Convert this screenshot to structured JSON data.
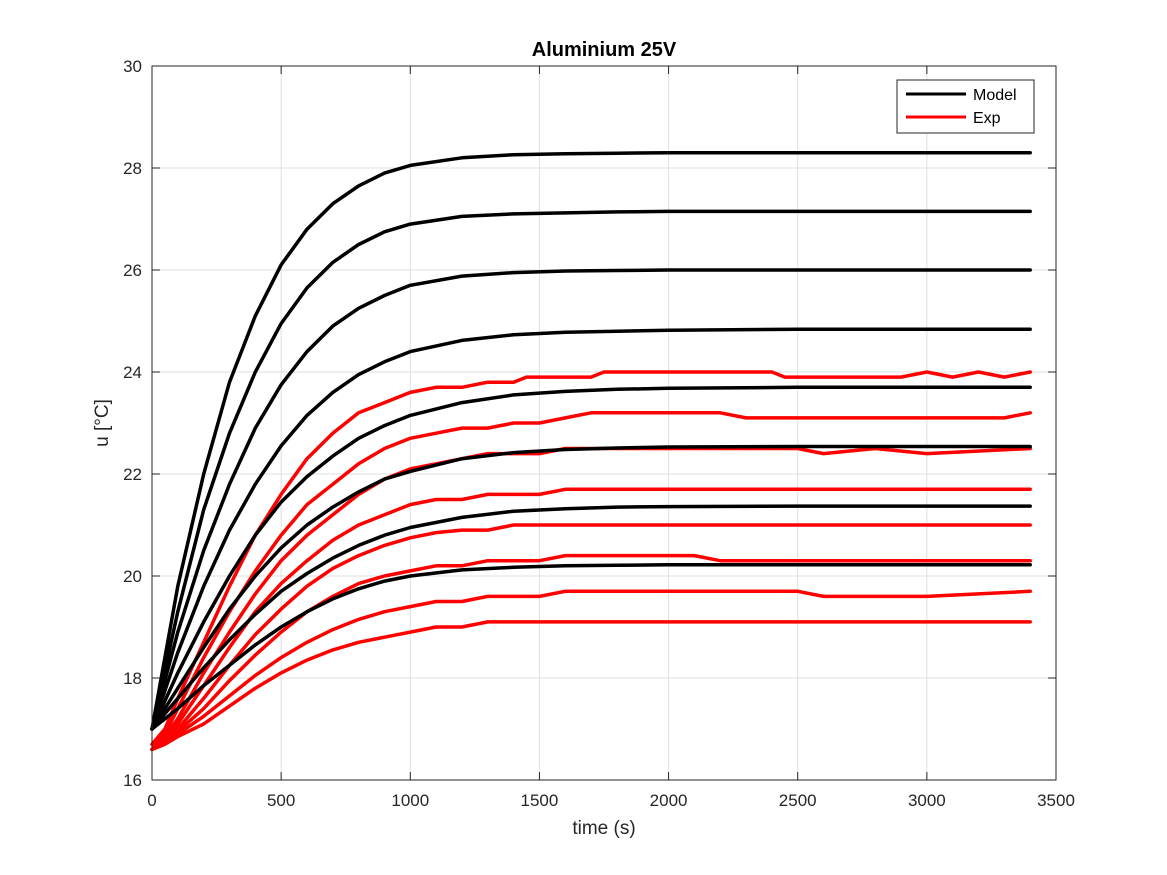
{
  "chart_data": {
    "type": "line",
    "title": "Aluminium 25V",
    "xlabel": "time (s)",
    "ylabel": "u [°C]",
    "xlim": [
      0,
      3500
    ],
    "ylim": [
      16,
      30
    ],
    "xticks": [
      0,
      500,
      1000,
      1500,
      2000,
      2500,
      3000,
      3500
    ],
    "yticks": [
      16,
      18,
      20,
      22,
      24,
      26,
      28,
      30
    ],
    "grid": true,
    "legend": {
      "placement": "top-right",
      "entries": [
        {
          "label": "Model",
          "color": "#000000"
        },
        {
          "label": "Exp",
          "color": "#ff0000"
        }
      ]
    },
    "series": [
      {
        "group": "Model",
        "color": "#000000",
        "x": [
          0,
          100,
          200,
          300,
          400,
          500,
          600,
          700,
          800,
          900,
          1000,
          1200,
          1400,
          1600,
          1800,
          2000,
          2500,
          3000,
          3400
        ],
        "y": [
          17.0,
          19.8,
          22.0,
          23.8,
          25.1,
          26.1,
          26.8,
          27.3,
          27.65,
          27.9,
          28.05,
          28.2,
          28.26,
          28.28,
          28.29,
          28.3,
          28.3,
          28.3,
          28.3
        ]
      },
      {
        "group": "Model",
        "color": "#000000",
        "x": [
          0,
          100,
          200,
          300,
          400,
          500,
          600,
          700,
          800,
          900,
          1000,
          1200,
          1400,
          1600,
          1800,
          2000,
          2500,
          3000,
          3400
        ],
        "y": [
          17.0,
          19.3,
          21.3,
          22.8,
          24.0,
          24.95,
          25.65,
          26.15,
          26.5,
          26.75,
          26.9,
          27.05,
          27.1,
          27.12,
          27.14,
          27.15,
          27.15,
          27.15,
          27.15
        ]
      },
      {
        "group": "Model",
        "color": "#000000",
        "x": [
          0,
          100,
          200,
          300,
          400,
          500,
          600,
          700,
          800,
          900,
          1000,
          1200,
          1400,
          1600,
          1800,
          2000,
          2500,
          3000,
          3400
        ],
        "y": [
          17.0,
          18.9,
          20.5,
          21.8,
          22.9,
          23.75,
          24.4,
          24.9,
          25.25,
          25.5,
          25.7,
          25.88,
          25.95,
          25.98,
          25.99,
          26.0,
          26.0,
          26.0,
          26.0
        ]
      },
      {
        "group": "Model",
        "color": "#000000",
        "x": [
          0,
          100,
          200,
          300,
          400,
          500,
          600,
          700,
          800,
          900,
          1000,
          1200,
          1400,
          1600,
          1800,
          2000,
          2500,
          3000,
          3400
        ],
        "y": [
          17.0,
          18.5,
          19.8,
          20.9,
          21.8,
          22.55,
          23.15,
          23.6,
          23.95,
          24.2,
          24.4,
          24.62,
          24.73,
          24.78,
          24.8,
          24.82,
          24.84,
          24.84,
          24.84
        ]
      },
      {
        "group": "Model",
        "color": "#000000",
        "x": [
          0,
          100,
          200,
          300,
          400,
          500,
          600,
          700,
          800,
          900,
          1000,
          1200,
          1400,
          1600,
          1800,
          2000,
          2500,
          3000,
          3400
        ],
        "y": [
          17.0,
          18.1,
          19.1,
          20.0,
          20.8,
          21.45,
          21.95,
          22.35,
          22.7,
          22.95,
          23.15,
          23.4,
          23.55,
          23.62,
          23.66,
          23.68,
          23.7,
          23.7,
          23.7
        ]
      },
      {
        "group": "Model",
        "color": "#000000",
        "x": [
          0,
          100,
          200,
          300,
          400,
          500,
          600,
          700,
          800,
          900,
          1000,
          1200,
          1400,
          1600,
          1800,
          2000,
          2500,
          3000,
          3400
        ],
        "y": [
          17.0,
          17.8,
          18.6,
          19.35,
          20.0,
          20.55,
          21.0,
          21.35,
          21.65,
          21.9,
          22.05,
          22.3,
          22.42,
          22.48,
          22.51,
          22.53,
          22.54,
          22.54,
          22.54
        ]
      },
      {
        "group": "Model",
        "color": "#000000",
        "x": [
          0,
          100,
          200,
          300,
          400,
          500,
          600,
          700,
          800,
          900,
          1000,
          1200,
          1400,
          1600,
          1800,
          2000,
          2500,
          3000,
          3400
        ],
        "y": [
          17.0,
          17.6,
          18.2,
          18.75,
          19.25,
          19.7,
          20.05,
          20.35,
          20.6,
          20.8,
          20.95,
          21.15,
          21.27,
          21.32,
          21.35,
          21.36,
          21.37,
          21.37,
          21.37
        ]
      },
      {
        "group": "Model",
        "color": "#000000",
        "x": [
          0,
          100,
          200,
          300,
          400,
          500,
          600,
          700,
          800,
          900,
          1000,
          1200,
          1400,
          1600,
          1800,
          2000,
          2500,
          3000,
          3400
        ],
        "y": [
          17.0,
          17.4,
          17.85,
          18.25,
          18.65,
          19.0,
          19.3,
          19.55,
          19.75,
          19.9,
          20.0,
          20.12,
          20.17,
          20.2,
          20.21,
          20.22,
          20.22,
          20.22,
          20.22
        ]
      },
      {
        "group": "Exp",
        "color": "#ff0000",
        "x": [
          0,
          50,
          100,
          200,
          300,
          400,
          500,
          600,
          700,
          800,
          900,
          1000,
          1100,
          1200,
          1300,
          1400,
          1450,
          1500,
          1600,
          1700,
          1750,
          2000,
          2400,
          2450,
          2500,
          2600,
          2900,
          3000,
          3100,
          3200,
          3300,
          3400
        ],
        "y": [
          16.7,
          17.0,
          17.6,
          18.7,
          19.8,
          20.8,
          21.6,
          22.3,
          22.8,
          23.2,
          23.4,
          23.6,
          23.7,
          23.7,
          23.8,
          23.8,
          23.9,
          23.9,
          23.9,
          23.9,
          24.0,
          24.0,
          24.0,
          23.9,
          23.9,
          23.9,
          23.9,
          24.0,
          23.9,
          24.0,
          23.9,
          24.0
        ]
      },
      {
        "group": "Exp",
        "color": "#ff0000",
        "x": [
          0,
          50,
          100,
          200,
          300,
          400,
          500,
          600,
          700,
          800,
          900,
          1000,
          1100,
          1200,
          1300,
          1400,
          1500,
          1600,
          1700,
          1800,
          2000,
          2200,
          2300,
          2500,
          3000,
          3300,
          3400
        ],
        "y": [
          16.6,
          16.9,
          17.4,
          18.4,
          19.3,
          20.1,
          20.8,
          21.4,
          21.8,
          22.2,
          22.5,
          22.7,
          22.8,
          22.9,
          22.9,
          23.0,
          23.0,
          23.1,
          23.2,
          23.2,
          23.2,
          23.2,
          23.1,
          23.1,
          23.1,
          23.1,
          23.2
        ]
      },
      {
        "group": "Exp",
        "color": "#ff0000",
        "x": [
          0,
          50,
          100,
          200,
          300,
          400,
          500,
          600,
          700,
          800,
          900,
          1000,
          1100,
          1200,
          1300,
          1400,
          1500,
          1600,
          1800,
          2000,
          2500,
          2600,
          2800,
          3000,
          3400
        ],
        "y": [
          16.6,
          16.85,
          17.2,
          18.1,
          18.9,
          19.65,
          20.3,
          20.8,
          21.2,
          21.6,
          21.9,
          22.1,
          22.2,
          22.3,
          22.4,
          22.4,
          22.4,
          22.5,
          22.5,
          22.5,
          22.5,
          22.4,
          22.5,
          22.4,
          22.5
        ]
      },
      {
        "group": "Exp",
        "color": "#ff0000",
        "x": [
          0,
          50,
          100,
          200,
          300,
          400,
          500,
          600,
          700,
          800,
          900,
          1000,
          1100,
          1200,
          1300,
          1400,
          1500,
          1600,
          1700,
          1800,
          2000,
          2200,
          2500,
          3000,
          3400
        ],
        "y": [
          16.6,
          16.8,
          17.1,
          17.85,
          18.6,
          19.3,
          19.85,
          20.3,
          20.7,
          21.0,
          21.2,
          21.4,
          21.5,
          21.5,
          21.6,
          21.6,
          21.6,
          21.7,
          21.7,
          21.7,
          21.7,
          21.7,
          21.7,
          21.7,
          21.7
        ]
      },
      {
        "group": "Exp",
        "color": "#ff0000",
        "x": [
          0,
          50,
          100,
          200,
          300,
          400,
          500,
          600,
          700,
          800,
          900,
          1000,
          1100,
          1200,
          1300,
          1400,
          1500,
          1600,
          1800,
          2000,
          2500,
          3000,
          3400
        ],
        "y": [
          16.6,
          16.8,
          17.0,
          17.6,
          18.25,
          18.85,
          19.35,
          19.8,
          20.15,
          20.4,
          20.6,
          20.75,
          20.85,
          20.9,
          20.9,
          21.0,
          21.0,
          21.0,
          21.0,
          21.0,
          21.0,
          21.0,
          21.0
        ]
      },
      {
        "group": "Exp",
        "color": "#ff0000",
        "x": [
          0,
          50,
          100,
          200,
          300,
          400,
          500,
          600,
          700,
          800,
          900,
          1000,
          1100,
          1200,
          1300,
          1400,
          1500,
          1600,
          1700,
          2100,
          2200,
          2500,
          3000,
          3400
        ],
        "y": [
          16.6,
          16.75,
          16.95,
          17.4,
          17.95,
          18.45,
          18.9,
          19.3,
          19.6,
          19.85,
          20.0,
          20.1,
          20.2,
          20.2,
          20.3,
          20.3,
          20.3,
          20.4,
          20.4,
          20.4,
          20.3,
          20.3,
          20.3,
          20.3
        ]
      },
      {
        "group": "Exp",
        "color": "#ff0000",
        "x": [
          0,
          50,
          100,
          200,
          300,
          400,
          500,
          600,
          700,
          800,
          900,
          1000,
          1100,
          1200,
          1300,
          1400,
          1500,
          1600,
          2000,
          2500,
          2600,
          3000,
          3400
        ],
        "y": [
          16.6,
          16.7,
          16.9,
          17.25,
          17.65,
          18.05,
          18.4,
          18.7,
          18.95,
          19.15,
          19.3,
          19.4,
          19.5,
          19.5,
          19.6,
          19.6,
          19.6,
          19.7,
          19.7,
          19.7,
          19.6,
          19.6,
          19.7
        ]
      },
      {
        "group": "Exp",
        "color": "#ff0000",
        "x": [
          0,
          50,
          100,
          200,
          300,
          400,
          500,
          600,
          700,
          800,
          900,
          1000,
          1100,
          1200,
          1300,
          1400,
          1500,
          1600,
          2000,
          2500,
          3000,
          3400
        ],
        "y": [
          16.6,
          16.7,
          16.85,
          17.1,
          17.45,
          17.8,
          18.1,
          18.35,
          18.55,
          18.7,
          18.8,
          18.9,
          19.0,
          19.0,
          19.1,
          19.1,
          19.1,
          19.1,
          19.1,
          19.1,
          19.1,
          19.1
        ]
      }
    ]
  }
}
